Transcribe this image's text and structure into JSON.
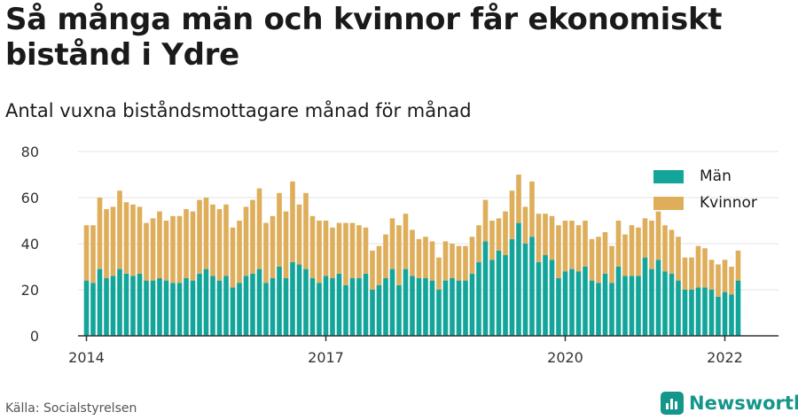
{
  "title": "Så många män och kvinnor får ekonomiskt bistånd i Ydre",
  "subtitle": "Antal vuxna biståndsmottagare månad för månad",
  "source": "Källa: Socialstyrelsen",
  "brand": "Newsworthy",
  "colors": {
    "men": "#14a59a",
    "women": "#deae5b",
    "grid": "#e3e3e3",
    "axis": "#333333"
  },
  "legend": [
    {
      "label": "Män",
      "color": "#14a59a"
    },
    {
      "label": "Kvinnor",
      "color": "#deae5b"
    }
  ],
  "chart_data": {
    "type": "bar",
    "stacked": true,
    "x_start": "2014-01",
    "x_end": "2022-03",
    "x_ticks": [
      "2014",
      "2017",
      "2020",
      "2022"
    ],
    "y_ticks": [
      0,
      20,
      40,
      60,
      80
    ],
    "ylim": [
      0,
      80
    ],
    "grid": true,
    "legend_position": "top-right",
    "series": [
      {
        "name": "Män",
        "values": [
          24,
          23,
          29,
          25,
          26,
          29,
          27,
          26,
          27,
          24,
          24,
          25,
          24,
          23,
          23,
          25,
          24,
          27,
          29,
          26,
          24,
          26,
          21,
          23,
          26,
          27,
          29,
          23,
          25,
          30,
          25,
          32,
          31,
          29,
          25,
          23,
          26,
          25,
          27,
          22,
          25,
          25,
          27,
          20,
          22,
          25,
          29,
          22,
          29,
          26,
          25,
          25,
          24,
          20,
          24,
          25,
          24,
          24,
          27,
          32,
          41,
          33,
          37,
          35,
          42,
          49,
          40,
          43,
          32,
          35,
          33,
          25,
          28,
          29,
          28,
          30,
          24,
          23,
          27,
          23,
          30,
          26,
          26,
          26,
          34,
          29,
          33,
          28,
          27,
          24,
          20,
          20,
          21,
          21,
          20,
          17,
          19,
          18,
          24
        ]
      },
      {
        "name": "Kvinnor",
        "values": [
          24,
          25,
          31,
          30,
          30,
          34,
          31,
          31,
          29,
          25,
          27,
          29,
          26,
          29,
          29,
          30,
          30,
          32,
          31,
          31,
          31,
          31,
          26,
          27,
          30,
          32,
          35,
          26,
          27,
          32,
          29,
          35,
          26,
          33,
          27,
          27,
          24,
          22,
          22,
          27,
          24,
          23,
          20,
          17,
          17,
          19,
          22,
          26,
          24,
          20,
          17,
          18,
          17,
          14,
          17,
          15,
          15,
          15,
          16,
          16,
          18,
          17,
          14,
          19,
          21,
          21,
          16,
          24,
          21,
          18,
          19,
          23,
          22,
          21,
          20,
          20,
          18,
          20,
          18,
          16,
          20,
          18,
          22,
          21,
          17,
          21,
          21,
          20,
          19,
          19,
          14,
          14,
          18,
          17,
          13,
          14,
          14,
          12,
          13
        ]
      }
    ]
  }
}
